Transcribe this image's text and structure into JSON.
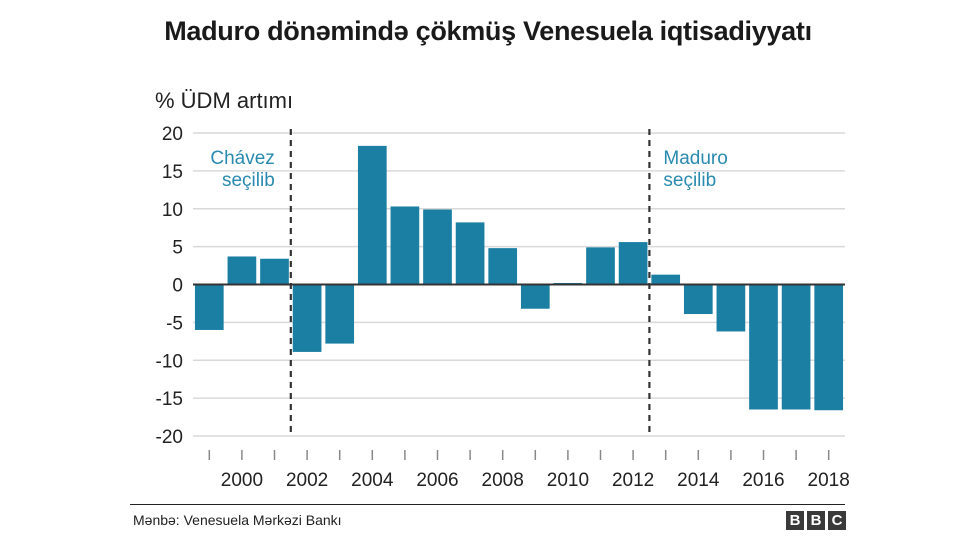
{
  "header": {
    "title": "Maduro dönəmində çökmüş Venesuela iqtisadiyyatı"
  },
  "footer": {
    "source": "Mənbə: Venesuela Mərkəzi Bankı",
    "logo_letters": [
      "B",
      "B",
      "C"
    ]
  },
  "colors": {
    "bar": "#1a7fa3",
    "annotation": "#2a8ab0",
    "grid": "#d9d9d9",
    "zero_line": "#333333"
  },
  "chart_data": {
    "type": "bar",
    "title": "Maduro dönəmində çökmüş Venesuela iqtisadiyyatı",
    "ylabel": "% ÜDM artımı",
    "xlabel": "",
    "ylim": [
      -20,
      20
    ],
    "yticks": [
      20,
      15,
      10,
      5,
      0,
      -5,
      -10,
      -15,
      -20
    ],
    "xlim": [
      1998.5,
      2018.5
    ],
    "xticks": [
      2000,
      2002,
      2004,
      2006,
      2008,
      2010,
      2012,
      2014,
      2016,
      2018
    ],
    "grid": true,
    "categories": [
      1999,
      2000,
      2001,
      2002,
      2003,
      2004,
      2005,
      2006,
      2007,
      2008,
      2009,
      2010,
      2011,
      2012,
      2013,
      2014,
      2015,
      2016,
      2017,
      2018
    ],
    "values": [
      -6.0,
      3.7,
      3.4,
      -8.9,
      -7.8,
      18.3,
      10.3,
      9.9,
      8.2,
      4.8,
      -3.2,
      0.2,
      4.9,
      5.6,
      1.3,
      -3.9,
      -6.2,
      -16.5,
      -16.5,
      -16.6
    ],
    "annotations": [
      {
        "year": 2001.5,
        "lines": [
          "Chávez",
          "seçilib"
        ],
        "anchor": "end"
      },
      {
        "year": 2012.5,
        "lines": [
          "Maduro",
          "seçilib"
        ],
        "anchor": "start"
      }
    ]
  }
}
